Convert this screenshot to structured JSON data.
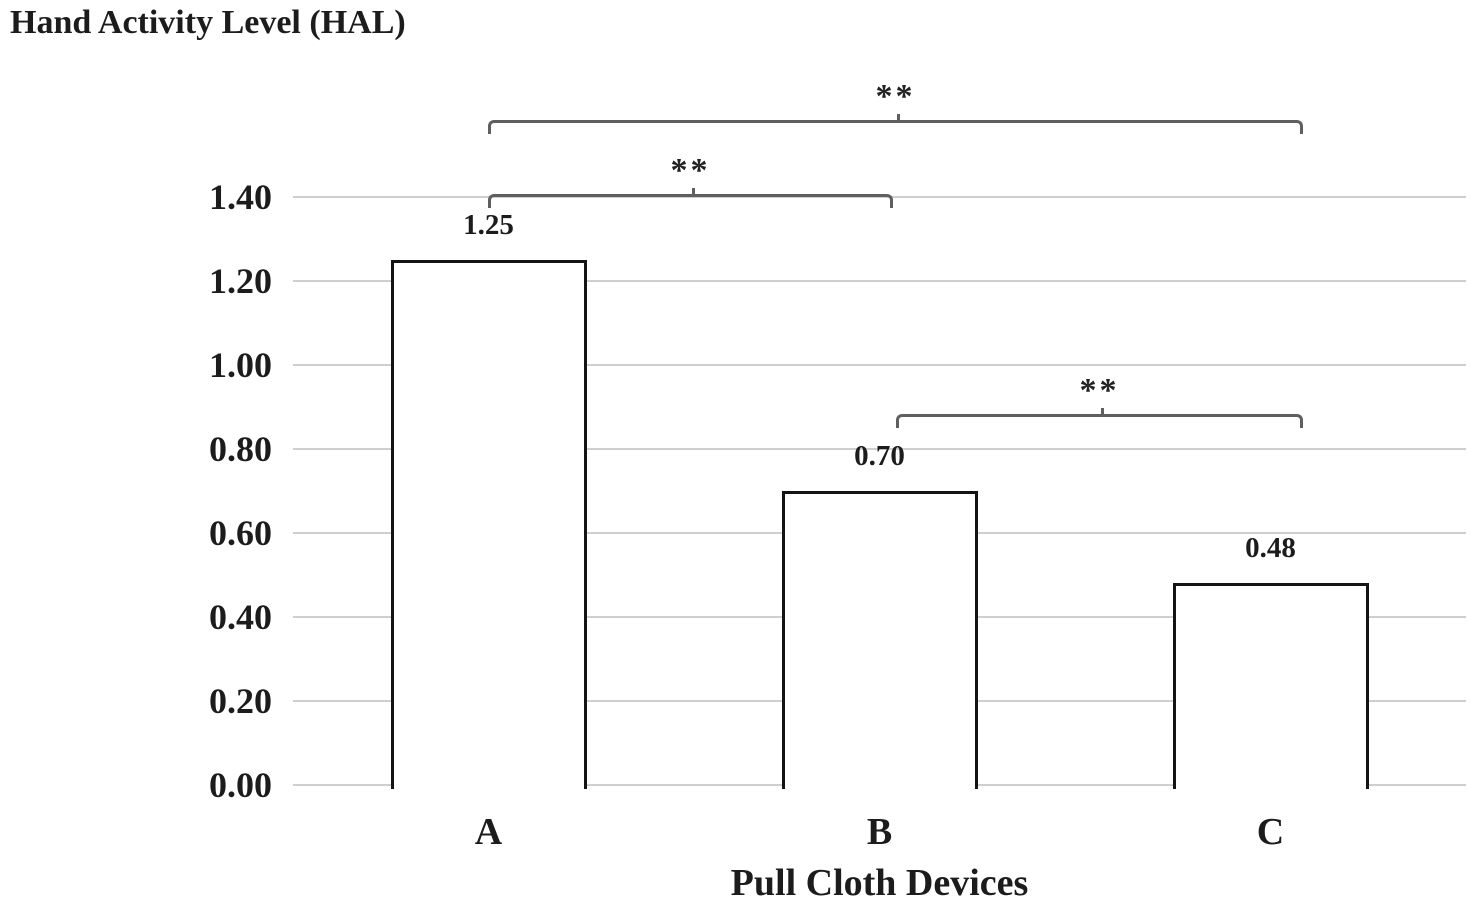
{
  "chart_data": {
    "type": "bar",
    "title": "Hand Activity Level (HAL)",
    "xlabel": "Pull Cloth Devices",
    "ylabel": "",
    "categories": [
      "A",
      "B",
      "C"
    ],
    "values": [
      1.25,
      0.7,
      0.48
    ],
    "value_labels": [
      "1.25",
      "0.70",
      "0.48"
    ],
    "ylim": [
      0,
      1.4
    ],
    "ytick_step": 0.2,
    "yticks": [
      "0.00",
      "0.20",
      "0.40",
      "0.60",
      "0.80",
      "1.00",
      "1.20",
      "1.40"
    ],
    "grid": "horizontal",
    "legend": "none",
    "bar_fill": "#ffffff",
    "bar_border_color": "#141414",
    "gridline_color": "#cfcfcf",
    "bracket_color": "#5f5f5f",
    "text_color": "#1c1c1c",
    "significance_brackets": [
      {
        "from": "A",
        "to": "C",
        "label": "**"
      },
      {
        "from": "A",
        "to": "B",
        "label": "**"
      },
      {
        "from": "B",
        "to": "C",
        "label": "**"
      }
    ]
  }
}
